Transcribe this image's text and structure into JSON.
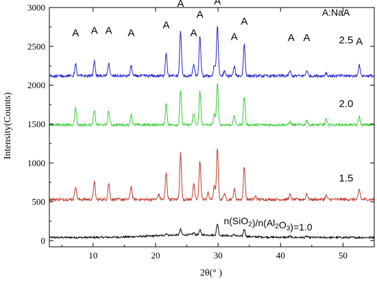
{
  "chart_data": {
    "type": "line",
    "title": "",
    "xlabel": "2θ(° )",
    "ylabel": "Intensity(Counts)",
    "xlim": [
      3,
      55
    ],
    "ylim": [
      -80,
      3000
    ],
    "x_ticks": [
      10,
      20,
      30,
      40,
      50
    ],
    "y_ticks": [
      0,
      500,
      1000,
      1500,
      2000,
      2500,
      3000
    ],
    "legend_note": "A:NaA",
    "peak_marker": "A",
    "peaks_2theta": [
      7.2,
      10.2,
      12.5,
      16.1,
      21.7,
      24.0,
      26.1,
      27.1,
      29.9,
      34.2
    ],
    "peak_label_positions": [
      {
        "x": 7.2,
        "y": 2630
      },
      {
        "x": 10.2,
        "y": 2660
      },
      {
        "x": 12.5,
        "y": 2660
      },
      {
        "x": 16.1,
        "y": 2630
      },
      {
        "x": 21.7,
        "y": 2730
      },
      {
        "x": 24.0,
        "y": 3010
      },
      {
        "x": 26.1,
        "y": 2630
      },
      {
        "x": 27.1,
        "y": 2870
      },
      {
        "x": 29.9,
        "y": 3040
      },
      {
        "x": 32.6,
        "y": 2580
      },
      {
        "x": 34.2,
        "y": 2780
      },
      {
        "x": 41.7,
        "y": 2570
      },
      {
        "x": 44.2,
        "y": 2570
      },
      {
        "x": 52.6,
        "y": 2520
      }
    ],
    "series": [
      {
        "name": "n(SiO₂)/n(Al₂O₃)=1.0",
        "color": "#000000",
        "baseline": 40,
        "noise": 12,
        "peaks": [
          [
            21.7,
            25
          ],
          [
            24.0,
            70
          ],
          [
            26.1,
            25
          ],
          [
            27.1,
            60
          ],
          [
            29.9,
            150
          ],
          [
            34.2,
            95
          ],
          [
            32.6,
            20
          ],
          [
            41.5,
            15
          ],
          [
            44.2,
            15
          ]
        ],
        "broad_hump": [
          [
            26,
            6,
            35
          ]
        ]
      },
      {
        "name": "1.5",
        "color": "#c0392b",
        "baseline": 530,
        "noise": 18,
        "peaks": [
          [
            7.2,
            170
          ],
          [
            10.2,
            230
          ],
          [
            12.5,
            210
          ],
          [
            16.1,
            170
          ],
          [
            20.5,
            70
          ],
          [
            21.7,
            340
          ],
          [
            24.0,
            600
          ],
          [
            26.1,
            200
          ],
          [
            27.1,
            500
          ],
          [
            28.4,
            80
          ],
          [
            29.4,
            170
          ],
          [
            29.9,
            650
          ],
          [
            31.0,
            80
          ],
          [
            32.6,
            130
          ],
          [
            34.2,
            420
          ],
          [
            36.0,
            40
          ],
          [
            41.5,
            60
          ],
          [
            44.2,
            80
          ],
          [
            47.3,
            50
          ],
          [
            52.6,
            130
          ]
        ],
        "broad_hump": []
      },
      {
        "name": "2.0",
        "color": "#33cc33",
        "baseline": 1490,
        "noise": 16,
        "peaks": [
          [
            7.2,
            220
          ],
          [
            10.2,
            180
          ],
          [
            12.5,
            180
          ],
          [
            16.1,
            140
          ],
          [
            21.7,
            270
          ],
          [
            24.0,
            450
          ],
          [
            26.1,
            150
          ],
          [
            27.1,
            430
          ],
          [
            29.4,
            140
          ],
          [
            29.9,
            530
          ],
          [
            32.6,
            120
          ],
          [
            34.2,
            360
          ],
          [
            41.5,
            40
          ],
          [
            44.2,
            60
          ],
          [
            47.3,
            70
          ],
          [
            52.6,
            110
          ]
        ],
        "broad_hump": []
      },
      {
        "name": "2.5",
        "color": "#2222cc",
        "baseline": 2120,
        "noise": 18,
        "peaks": [
          [
            7.2,
            150
          ],
          [
            10.2,
            190
          ],
          [
            12.5,
            170
          ],
          [
            16.1,
            130
          ],
          [
            21.7,
            300
          ],
          [
            24.0,
            580
          ],
          [
            26.1,
            150
          ],
          [
            27.1,
            500
          ],
          [
            29.4,
            140
          ],
          [
            29.9,
            650
          ],
          [
            31.0,
            60
          ],
          [
            32.6,
            120
          ],
          [
            34.2,
            410
          ],
          [
            41.5,
            60
          ],
          [
            44.2,
            70
          ],
          [
            47.3,
            40
          ],
          [
            52.6,
            150
          ]
        ],
        "broad_hump": []
      }
    ],
    "series_label_positions": [
      {
        "series": 0,
        "x": 38.0,
        "y": 210
      },
      {
        "series": 1,
        "x": 50.5,
        "y": 760
      },
      {
        "series": 2,
        "x": 50.5,
        "y": 1720
      },
      {
        "series": 3,
        "x": 50.5,
        "y": 2540
      }
    ]
  }
}
